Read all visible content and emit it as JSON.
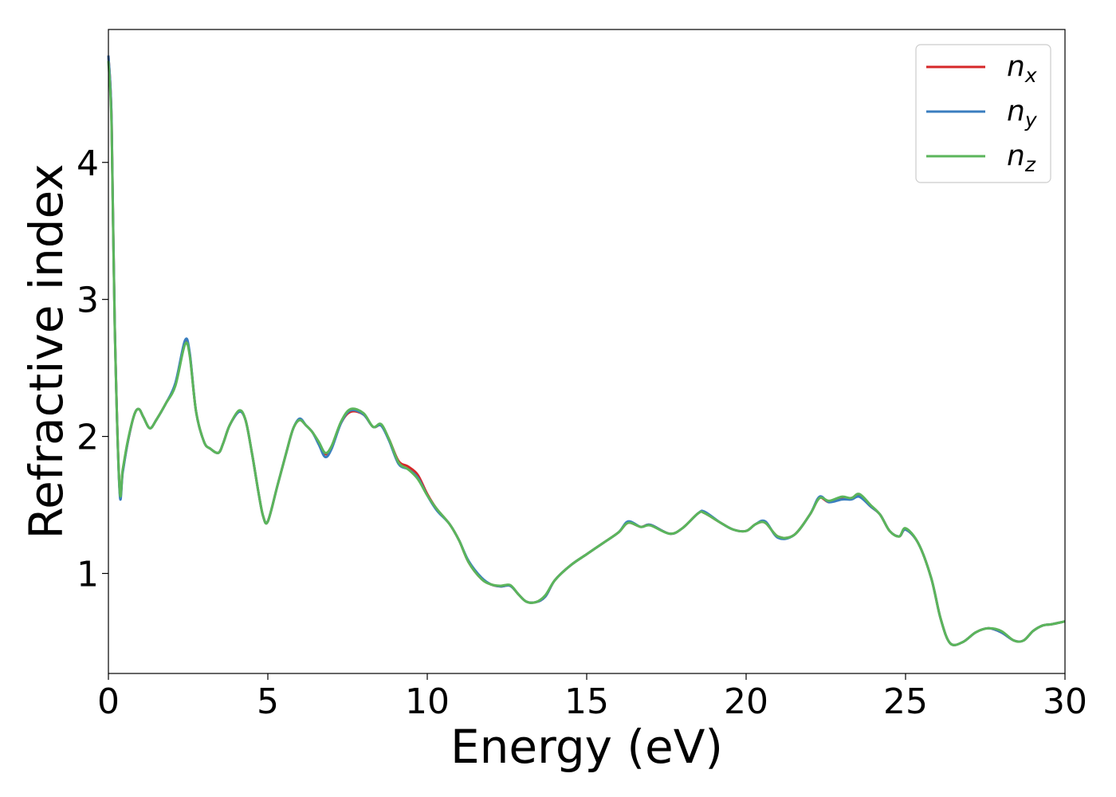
{
  "chart_data": {
    "type": "line",
    "xlabel": "Energy (eV)",
    "ylabel": "Refractive index",
    "xlim": [
      0,
      30
    ],
    "ylim": [
      0.27,
      4.97
    ],
    "xticks": [
      0,
      5,
      10,
      15,
      20,
      25,
      30
    ],
    "yticks": [
      1,
      2,
      3,
      4
    ],
    "grid": false,
    "legend_position": "top-right",
    "series": [
      {
        "name": "n",
        "subscript": "x",
        "color": "#d62728",
        "points": [
          [
            0,
            4.78
          ],
          [
            0.1,
            4.3
          ],
          [
            0.2,
            2.8
          ],
          [
            0.35,
            1.62
          ],
          [
            0.45,
            1.75
          ],
          [
            0.6,
            1.95
          ],
          [
            0.8,
            2.15
          ],
          [
            0.95,
            2.2
          ],
          [
            1.1,
            2.14
          ],
          [
            1.3,
            2.06
          ],
          [
            1.5,
            2.12
          ],
          [
            1.8,
            2.24
          ],
          [
            2.1,
            2.38
          ],
          [
            2.4,
            2.69
          ],
          [
            2.55,
            2.6
          ],
          [
            2.75,
            2.18
          ],
          [
            3.0,
            1.96
          ],
          [
            3.2,
            1.91
          ],
          [
            3.45,
            1.88
          ],
          [
            3.6,
            1.95
          ],
          [
            3.8,
            2.08
          ],
          [
            4.1,
            2.18
          ],
          [
            4.3,
            2.12
          ],
          [
            4.5,
            1.88
          ],
          [
            4.7,
            1.6
          ],
          [
            4.85,
            1.42
          ],
          [
            5.0,
            1.38
          ],
          [
            5.3,
            1.64
          ],
          [
            5.6,
            1.9
          ],
          [
            5.8,
            2.06
          ],
          [
            6.0,
            2.12
          ],
          [
            6.2,
            2.08
          ],
          [
            6.4,
            2.03
          ],
          [
            6.6,
            1.95
          ],
          [
            6.8,
            1.87
          ],
          [
            7.0,
            1.92
          ],
          [
            7.3,
            2.1
          ],
          [
            7.6,
            2.18
          ],
          [
            8.0,
            2.16
          ],
          [
            8.3,
            2.07
          ],
          [
            8.55,
            2.08
          ],
          [
            8.8,
            1.98
          ],
          [
            9.1,
            1.82
          ],
          [
            9.4,
            1.78
          ],
          [
            9.7,
            1.72
          ],
          [
            10.0,
            1.58
          ],
          [
            10.3,
            1.47
          ],
          [
            10.7,
            1.36
          ],
          [
            11.0,
            1.24
          ],
          [
            11.3,
            1.08
          ],
          [
            11.7,
            0.96
          ],
          [
            12.0,
            0.92
          ],
          [
            12.3,
            0.905
          ],
          [
            12.6,
            0.91
          ],
          [
            12.85,
            0.85
          ],
          [
            13.1,
            0.795
          ],
          [
            13.4,
            0.79
          ],
          [
            13.7,
            0.83
          ],
          [
            14.0,
            0.95
          ],
          [
            14.5,
            1.06
          ],
          [
            15.0,
            1.14
          ],
          [
            15.5,
            1.22
          ],
          [
            16.0,
            1.3
          ],
          [
            16.3,
            1.37
          ],
          [
            16.7,
            1.34
          ],
          [
            17.0,
            1.355
          ],
          [
            17.6,
            1.29
          ],
          [
            18.0,
            1.33
          ],
          [
            18.5,
            1.44
          ],
          [
            18.7,
            1.44
          ],
          [
            19.2,
            1.37
          ],
          [
            19.6,
            1.32
          ],
          [
            20.0,
            1.31
          ],
          [
            20.3,
            1.36
          ],
          [
            20.6,
            1.37
          ],
          [
            21.0,
            1.27
          ],
          [
            21.5,
            1.28
          ],
          [
            22.0,
            1.43
          ],
          [
            22.3,
            1.55
          ],
          [
            22.6,
            1.52
          ],
          [
            23.0,
            1.55
          ],
          [
            23.3,
            1.55
          ],
          [
            23.55,
            1.57
          ],
          [
            23.9,
            1.49
          ],
          [
            24.2,
            1.43
          ],
          [
            24.5,
            1.31
          ],
          [
            24.8,
            1.27
          ],
          [
            25.0,
            1.32
          ],
          [
            25.4,
            1.22
          ],
          [
            25.8,
            0.97
          ],
          [
            26.1,
            0.67
          ],
          [
            26.4,
            0.49
          ],
          [
            26.8,
            0.5
          ],
          [
            27.2,
            0.57
          ],
          [
            27.6,
            0.6
          ],
          [
            28.0,
            0.57
          ],
          [
            28.4,
            0.51
          ],
          [
            28.7,
            0.51
          ],
          [
            29.0,
            0.58
          ],
          [
            29.3,
            0.62
          ],
          [
            29.6,
            0.63
          ],
          [
            30.0,
            0.65
          ]
        ]
      },
      {
        "name": "n",
        "subscript": "y",
        "color": "#3a7ebf",
        "points": [
          [
            0,
            4.78
          ],
          [
            0.1,
            4.3
          ],
          [
            0.2,
            2.8
          ],
          [
            0.35,
            1.6
          ],
          [
            0.45,
            1.74
          ],
          [
            0.6,
            1.95
          ],
          [
            0.8,
            2.15
          ],
          [
            0.95,
            2.2
          ],
          [
            1.1,
            2.14
          ],
          [
            1.3,
            2.06
          ],
          [
            1.5,
            2.12
          ],
          [
            1.8,
            2.24
          ],
          [
            2.1,
            2.39
          ],
          [
            2.4,
            2.7
          ],
          [
            2.55,
            2.61
          ],
          [
            2.75,
            2.18
          ],
          [
            3.0,
            1.96
          ],
          [
            3.2,
            1.91
          ],
          [
            3.45,
            1.88
          ],
          [
            3.6,
            1.95
          ],
          [
            3.8,
            2.08
          ],
          [
            4.1,
            2.18
          ],
          [
            4.3,
            2.12
          ],
          [
            4.5,
            1.88
          ],
          [
            4.7,
            1.6
          ],
          [
            4.85,
            1.42
          ],
          [
            5.0,
            1.38
          ],
          [
            5.3,
            1.64
          ],
          [
            5.6,
            1.9
          ],
          [
            5.8,
            2.06
          ],
          [
            6.0,
            2.13
          ],
          [
            6.2,
            2.08
          ],
          [
            6.4,
            2.03
          ],
          [
            6.6,
            1.94
          ],
          [
            6.8,
            1.85
          ],
          [
            7.0,
            1.91
          ],
          [
            7.3,
            2.1
          ],
          [
            7.6,
            2.19
          ],
          [
            8.0,
            2.16
          ],
          [
            8.3,
            2.07
          ],
          [
            8.55,
            2.08
          ],
          [
            8.8,
            1.97
          ],
          [
            9.1,
            1.8
          ],
          [
            9.4,
            1.76
          ],
          [
            9.7,
            1.7
          ],
          [
            10.0,
            1.57
          ],
          [
            10.3,
            1.46
          ],
          [
            10.7,
            1.36
          ],
          [
            11.0,
            1.24
          ],
          [
            11.3,
            1.09
          ],
          [
            11.7,
            0.97
          ],
          [
            12.0,
            0.92
          ],
          [
            12.3,
            0.905
          ],
          [
            12.6,
            0.91
          ],
          [
            12.85,
            0.85
          ],
          [
            13.1,
            0.795
          ],
          [
            13.4,
            0.79
          ],
          [
            13.7,
            0.83
          ],
          [
            14.0,
            0.95
          ],
          [
            14.5,
            1.06
          ],
          [
            15.0,
            1.14
          ],
          [
            15.5,
            1.22
          ],
          [
            16.0,
            1.3
          ],
          [
            16.3,
            1.38
          ],
          [
            16.7,
            1.34
          ],
          [
            17.0,
            1.355
          ],
          [
            17.6,
            1.29
          ],
          [
            18.0,
            1.33
          ],
          [
            18.5,
            1.44
          ],
          [
            18.7,
            1.45
          ],
          [
            19.2,
            1.37
          ],
          [
            19.6,
            1.32
          ],
          [
            20.0,
            1.31
          ],
          [
            20.3,
            1.36
          ],
          [
            20.6,
            1.38
          ],
          [
            21.0,
            1.26
          ],
          [
            21.5,
            1.28
          ],
          [
            22.0,
            1.43
          ],
          [
            22.3,
            1.56
          ],
          [
            22.6,
            1.52
          ],
          [
            23.0,
            1.54
          ],
          [
            23.3,
            1.54
          ],
          [
            23.55,
            1.56
          ],
          [
            23.9,
            1.49
          ],
          [
            24.2,
            1.43
          ],
          [
            24.5,
            1.31
          ],
          [
            24.8,
            1.27
          ],
          [
            25.0,
            1.32
          ],
          [
            25.4,
            1.22
          ],
          [
            25.8,
            0.97
          ],
          [
            26.1,
            0.67
          ],
          [
            26.4,
            0.49
          ],
          [
            26.8,
            0.5
          ],
          [
            27.2,
            0.57
          ],
          [
            27.6,
            0.6
          ],
          [
            28.0,
            0.57
          ],
          [
            28.4,
            0.51
          ],
          [
            28.7,
            0.51
          ],
          [
            29.0,
            0.58
          ],
          [
            29.3,
            0.62
          ],
          [
            29.6,
            0.63
          ],
          [
            30.0,
            0.65
          ]
        ]
      },
      {
        "name": "n",
        "subscript": "z",
        "color": "#5bb55b",
        "points": [
          [
            0,
            4.74
          ],
          [
            0.1,
            4.25
          ],
          [
            0.2,
            2.78
          ],
          [
            0.35,
            1.62
          ],
          [
            0.45,
            1.76
          ],
          [
            0.6,
            1.96
          ],
          [
            0.8,
            2.15
          ],
          [
            0.95,
            2.2
          ],
          [
            1.1,
            2.14
          ],
          [
            1.3,
            2.06
          ],
          [
            1.5,
            2.12
          ],
          [
            1.8,
            2.24
          ],
          [
            2.1,
            2.37
          ],
          [
            2.4,
            2.67
          ],
          [
            2.55,
            2.59
          ],
          [
            2.75,
            2.18
          ],
          [
            3.0,
            1.96
          ],
          [
            3.2,
            1.91
          ],
          [
            3.45,
            1.88
          ],
          [
            3.6,
            1.95
          ],
          [
            3.8,
            2.08
          ],
          [
            4.1,
            2.19
          ],
          [
            4.3,
            2.12
          ],
          [
            4.5,
            1.88
          ],
          [
            4.7,
            1.6
          ],
          [
            4.85,
            1.42
          ],
          [
            5.0,
            1.38
          ],
          [
            5.3,
            1.64
          ],
          [
            5.6,
            1.9
          ],
          [
            5.8,
            2.06
          ],
          [
            6.0,
            2.12
          ],
          [
            6.2,
            2.08
          ],
          [
            6.4,
            2.03
          ],
          [
            6.6,
            1.96
          ],
          [
            6.8,
            1.88
          ],
          [
            7.0,
            1.93
          ],
          [
            7.3,
            2.11
          ],
          [
            7.6,
            2.2
          ],
          [
            8.0,
            2.17
          ],
          [
            8.3,
            2.07
          ],
          [
            8.55,
            2.09
          ],
          [
            8.8,
            1.98
          ],
          [
            9.1,
            1.81
          ],
          [
            9.4,
            1.76
          ],
          [
            9.7,
            1.69
          ],
          [
            10.0,
            1.57
          ],
          [
            10.3,
            1.47
          ],
          [
            10.7,
            1.36
          ],
          [
            11.0,
            1.24
          ],
          [
            11.3,
            1.08
          ],
          [
            11.7,
            0.96
          ],
          [
            12.0,
            0.92
          ],
          [
            12.3,
            0.91
          ],
          [
            12.6,
            0.915
          ],
          [
            12.85,
            0.85
          ],
          [
            13.1,
            0.795
          ],
          [
            13.4,
            0.79
          ],
          [
            13.7,
            0.84
          ],
          [
            14.0,
            0.95
          ],
          [
            14.5,
            1.06
          ],
          [
            15.0,
            1.14
          ],
          [
            15.5,
            1.22
          ],
          [
            16.0,
            1.3
          ],
          [
            16.3,
            1.37
          ],
          [
            16.7,
            1.34
          ],
          [
            17.0,
            1.35
          ],
          [
            17.6,
            1.29
          ],
          [
            18.0,
            1.33
          ],
          [
            18.5,
            1.44
          ],
          [
            18.7,
            1.44
          ],
          [
            19.2,
            1.37
          ],
          [
            19.6,
            1.32
          ],
          [
            20.0,
            1.31
          ],
          [
            20.3,
            1.36
          ],
          [
            20.6,
            1.37
          ],
          [
            21.0,
            1.27
          ],
          [
            21.5,
            1.28
          ],
          [
            22.0,
            1.43
          ],
          [
            22.3,
            1.55
          ],
          [
            22.6,
            1.53
          ],
          [
            23.0,
            1.56
          ],
          [
            23.3,
            1.55
          ],
          [
            23.55,
            1.58
          ],
          [
            23.9,
            1.5
          ],
          [
            24.2,
            1.43
          ],
          [
            24.5,
            1.31
          ],
          [
            24.8,
            1.27
          ],
          [
            25.0,
            1.33
          ],
          [
            25.4,
            1.22
          ],
          [
            25.8,
            0.97
          ],
          [
            26.1,
            0.67
          ],
          [
            26.4,
            0.49
          ],
          [
            26.8,
            0.5
          ],
          [
            27.2,
            0.57
          ],
          [
            27.6,
            0.6
          ],
          [
            28.0,
            0.58
          ],
          [
            28.4,
            0.51
          ],
          [
            28.7,
            0.51
          ],
          [
            29.0,
            0.58
          ],
          [
            29.3,
            0.62
          ],
          [
            29.6,
            0.63
          ],
          [
            30.0,
            0.65
          ]
        ]
      }
    ]
  }
}
